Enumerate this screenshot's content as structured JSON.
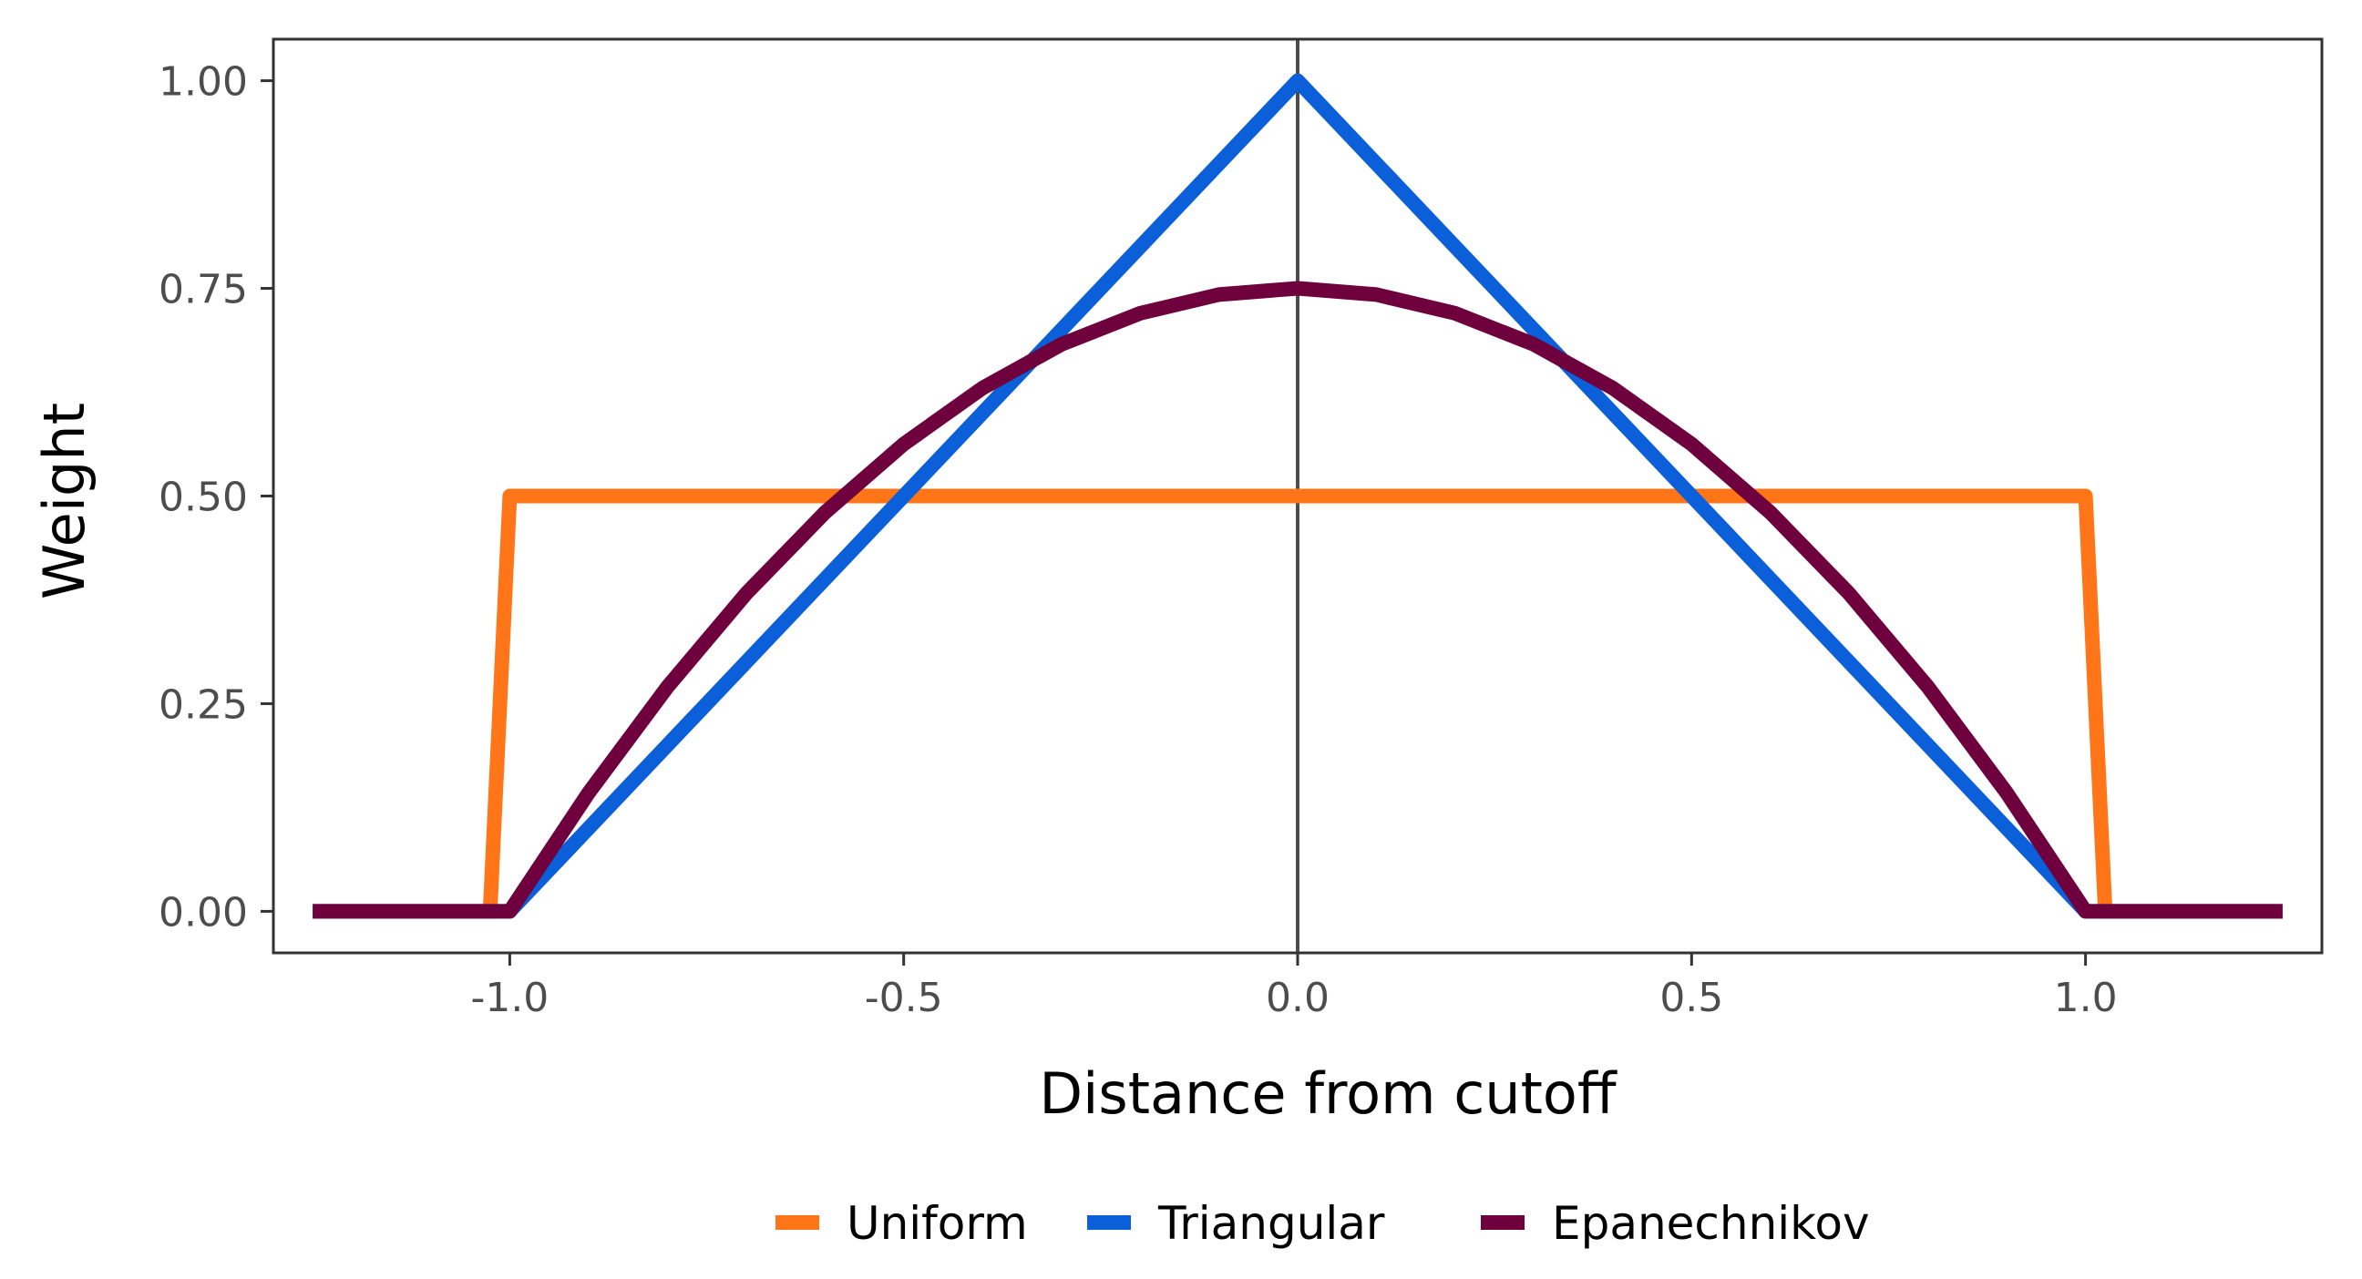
{
  "chart_data": {
    "type": "line",
    "title": "",
    "xlabel": "Distance from cutoff",
    "ylabel": "Weight",
    "xlim": [
      -1.3,
      1.3
    ],
    "ylim": [
      -0.05,
      1.05
    ],
    "x_ticks": [
      -1.0,
      -0.5,
      0.0,
      0.5,
      1.0
    ],
    "x_tick_labels": [
      "-1.0",
      "-0.5",
      "0.0",
      "0.5",
      "1.0"
    ],
    "y_ticks": [
      0.0,
      0.25,
      0.5,
      0.75,
      1.0
    ],
    "y_tick_labels": [
      "0.00",
      "0.25",
      "0.50",
      "0.75",
      "1.00"
    ],
    "grid": false,
    "vline_x": 0,
    "vline_color": "#4d4d4d",
    "legend_position": "bottom",
    "series": [
      {
        "name": "Uniform",
        "color": "#ff7518",
        "x": [
          -1.25,
          -1.025,
          -1.0,
          1.0,
          1.025,
          1.25
        ],
        "y": [
          0,
          0,
          0.5,
          0.5,
          0,
          0
        ]
      },
      {
        "name": "Triangular",
        "color": "#0b5fd9",
        "x": [
          -1.25,
          -1.0,
          0.0,
          1.0,
          1.25
        ],
        "y": [
          0,
          0,
          1.0,
          0,
          0
        ]
      },
      {
        "name": "Epanechnikov",
        "color": "#6e003d",
        "x": [
          -1.25,
          -1.0,
          -0.9,
          -0.8,
          -0.7,
          -0.6,
          -0.5,
          -0.4,
          -0.3,
          -0.2,
          -0.1,
          0.0,
          0.1,
          0.2,
          0.3,
          0.4,
          0.5,
          0.6,
          0.7,
          0.8,
          0.9,
          1.0,
          1.25
        ],
        "y": [
          0,
          0,
          0.1425,
          0.27,
          0.3825,
          0.48,
          0.5625,
          0.63,
          0.6825,
          0.72,
          0.7425,
          0.75,
          0.7425,
          0.72,
          0.6825,
          0.63,
          0.5625,
          0.48,
          0.3825,
          0.27,
          0.1425,
          0,
          0
        ]
      }
    ]
  }
}
